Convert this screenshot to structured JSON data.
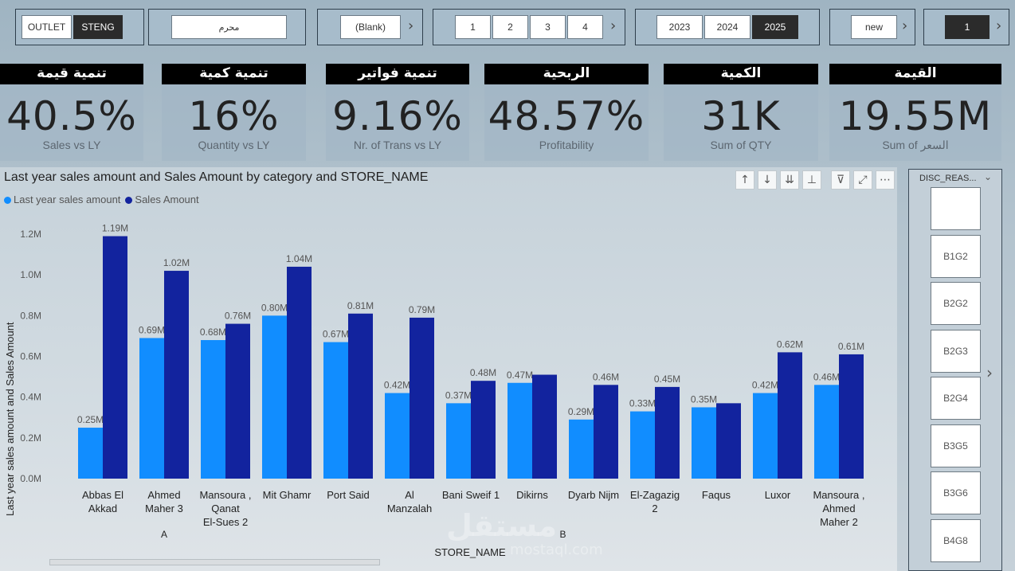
{
  "slicers": {
    "outlet": {
      "items": [
        "OUTLET",
        "STENG"
      ],
      "selected": 1
    },
    "hijri_month": {
      "value": "محرم"
    },
    "blank": {
      "value": "(Blank)"
    },
    "quarters": {
      "items": [
        "1",
        "2",
        "3",
        "4"
      ]
    },
    "years": {
      "items": [
        "2023",
        "2024",
        "2025"
      ],
      "selected": 2
    },
    "status": {
      "value": "new"
    },
    "page": {
      "value": "1"
    }
  },
  "kpis": [
    {
      "header": "تنمية قيمة",
      "value": "40.5%",
      "sub": "Sales vs LY"
    },
    {
      "header": "تنمية كمية",
      "value": "16%",
      "sub": "Quantity vs LY"
    },
    {
      "header": "تنمية فواتير",
      "value": "9.16%",
      "sub": "Nr. of Trans vs LY"
    },
    {
      "header": "الربحية",
      "value": "48.57%",
      "sub": "Profitability"
    },
    {
      "header": "الكمية",
      "value": "31K",
      "sub": "Sum of QTY"
    },
    {
      "header": "القيمة",
      "value": "19.55M",
      "sub": "Sum of السعر"
    }
  ],
  "chart_data": {
    "type": "bar",
    "title": "Last year sales amount and Sales Amount by category and STORE_NAME",
    "xlabel": "STORE_NAME",
    "ylabel": "Last year sales amount and Sales Amount",
    "ylim": [
      0,
      1.2
    ],
    "y_ticks": [
      "0.0M",
      "0.2M",
      "0.4M",
      "0.6M",
      "0.8M",
      "1.0M",
      "1.2M"
    ],
    "legend_position": "top-left",
    "categories": [
      [
        "Abbas El",
        "Akkad"
      ],
      [
        "Ahmed",
        "Maher 3"
      ],
      [
        "Mansoura ,",
        "Qanat",
        "El-Sues 2"
      ],
      [
        "Mit Ghamr"
      ],
      [
        "Port Said"
      ],
      [
        "Al",
        "Manzalah"
      ],
      [
        "Bani Sweif 1"
      ],
      [
        "Dikirns"
      ],
      [
        "Dyarb Nijm"
      ],
      [
        "El-Zagazig",
        "2"
      ],
      [
        "Faqus"
      ],
      [
        "Luxor"
      ],
      [
        "Mansoura ,",
        "Ahmed",
        "Maher 2"
      ]
    ],
    "groups": [
      {
        "name": "A",
        "from": 0,
        "to": 2
      },
      {
        "name": "B",
        "from": 3,
        "to": 12
      }
    ],
    "series": [
      {
        "name": "Last year sales amount",
        "color": "#118dff",
        "values": [
          0.25,
          0.69,
          0.68,
          0.8,
          0.67,
          0.42,
          0.37,
          0.47,
          0.29,
          0.33,
          0.35,
          0.42,
          0.46
        ],
        "labels": [
          "0.25M",
          "0.69M",
          "0.68M",
          "0.80M",
          "0.67M",
          "0.42M",
          "0.37M",
          "0.47M",
          "0.29M",
          "0.33M",
          "0.35M",
          "0.42M",
          "0.46M"
        ]
      },
      {
        "name": "Sales Amount",
        "color": "#12239e",
        "values": [
          1.19,
          1.02,
          0.76,
          1.04,
          0.81,
          0.79,
          0.48,
          0.51,
          0.46,
          0.45,
          0.37,
          0.62,
          0.61
        ],
        "labels": [
          "1.19M",
          "1.02M",
          "0.76M",
          "1.04M",
          "0.81M",
          "0.79M",
          "0.48M",
          "",
          "0.46M",
          "0.45M",
          "",
          "0.62M",
          "0.61M"
        ]
      }
    ]
  },
  "disc_slicer": {
    "title": "DISC_REAS...",
    "items": [
      "",
      "B1G2",
      "B2G2",
      "B2G3",
      "B2G4",
      "B3G5",
      "B3G6",
      "B4G8"
    ]
  },
  "toolbar_icons": [
    "arrow-up-icon",
    "arrow-down-icon",
    "double-arrow-down-icon",
    "expand-hierarchy-icon",
    "filter-icon",
    "focus-mode-icon",
    "more-options-icon"
  ],
  "watermark": {
    "line1": "مستقل",
    "line2": "mostaql.com"
  }
}
